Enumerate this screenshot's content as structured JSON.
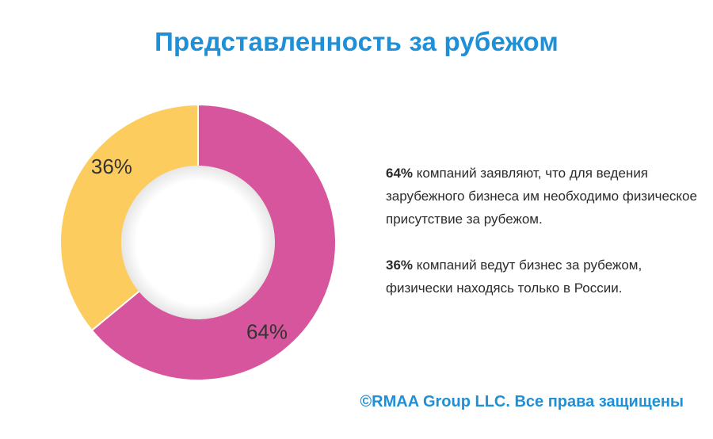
{
  "title": "Представленность за рубежом",
  "chart_data": {
    "type": "pie",
    "variant": "donut",
    "slices": [
      {
        "label": "64%",
        "value": 64,
        "color": "#d6559c"
      },
      {
        "label": "36%",
        "value": 36,
        "color": "#fccc5e"
      }
    ]
  },
  "notes": [
    {
      "value": "64%",
      "text": " компаний заявляют, что для ведения зарубежного бизнеса им необходимо физическое присутствие за рубежом."
    },
    {
      "value": "36%",
      "text": " компаний ведут бизнес за рубежом, физически находясь только в России."
    }
  ],
  "copyright": "©RMAA Group LLC. Все права защищены"
}
